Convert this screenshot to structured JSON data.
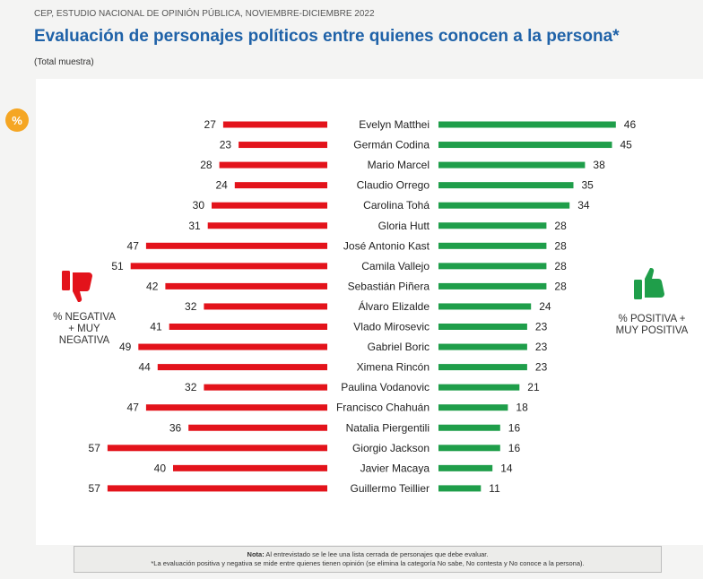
{
  "header": {
    "source": "CEP, ESTUDIO NACIONAL DE OPINIÓN PÚBLICA, NOVIEMBRE-DICIEMBRE 2022",
    "title": "Evaluación de personajes políticos entre quienes conocen a la persona*",
    "subtitle": "(Total muestra)"
  },
  "badge": {
    "label": "%"
  },
  "labels": {
    "negative": "% NEGATIVA\n+ MUY\nNEGATIVA",
    "positive": "% POSITIVA +\nMUY POSITIVA"
  },
  "note": {
    "title": "Nota:",
    "line1": "Al entrevistado se le lee una lista cerrada de personajes que debe evaluar.",
    "line2": "*La evaluación positiva y negativa se mide entre quienes tienen opinión (se elimina la categoría No sabe, No contesta y No conoce a la persona)."
  },
  "colors": {
    "negative": "#e3131b",
    "positive": "#1f9e4a",
    "badge": "#f5a623",
    "title": "#1f62a8"
  },
  "icons": {
    "negative": "thumbs-down-icon",
    "positive": "thumbs-up-icon"
  },
  "chart_data": {
    "type": "bar",
    "orientation": "horizontal-diverging",
    "title": "Evaluación de personajes políticos entre quienes conocen a la persona*",
    "categories": [
      "Evelyn Matthei",
      "Germán Codina",
      "Mario Marcel",
      "Claudio Orrego",
      "Carolina Tohá",
      "Gloria Hutt",
      "José Antonio Kast",
      "Camila Vallejo",
      "Sebastián Piñera",
      "Álvaro Elizalde",
      "Vlado Mirosevic",
      "Gabriel Boric",
      "Ximena Rincón",
      "Paulina Vodanovic",
      "Francisco Chahuán",
      "Natalia Piergentili",
      "Giorgio Jackson",
      "Javier Macaya",
      "Guillermo Teillier"
    ],
    "series": [
      {
        "name": "% NEGATIVA + MUY NEGATIVA",
        "values": [
          27,
          23,
          28,
          24,
          30,
          31,
          47,
          51,
          42,
          32,
          41,
          49,
          44,
          32,
          47,
          36,
          57,
          40,
          57
        ]
      },
      {
        "name": "% POSITIVA + MUY POSITIVA",
        "values": [
          46,
          45,
          38,
          35,
          34,
          28,
          28,
          28,
          28,
          24,
          23,
          23,
          23,
          21,
          18,
          16,
          16,
          14,
          11
        ]
      }
    ],
    "xlim": [
      0,
      60
    ]
  }
}
